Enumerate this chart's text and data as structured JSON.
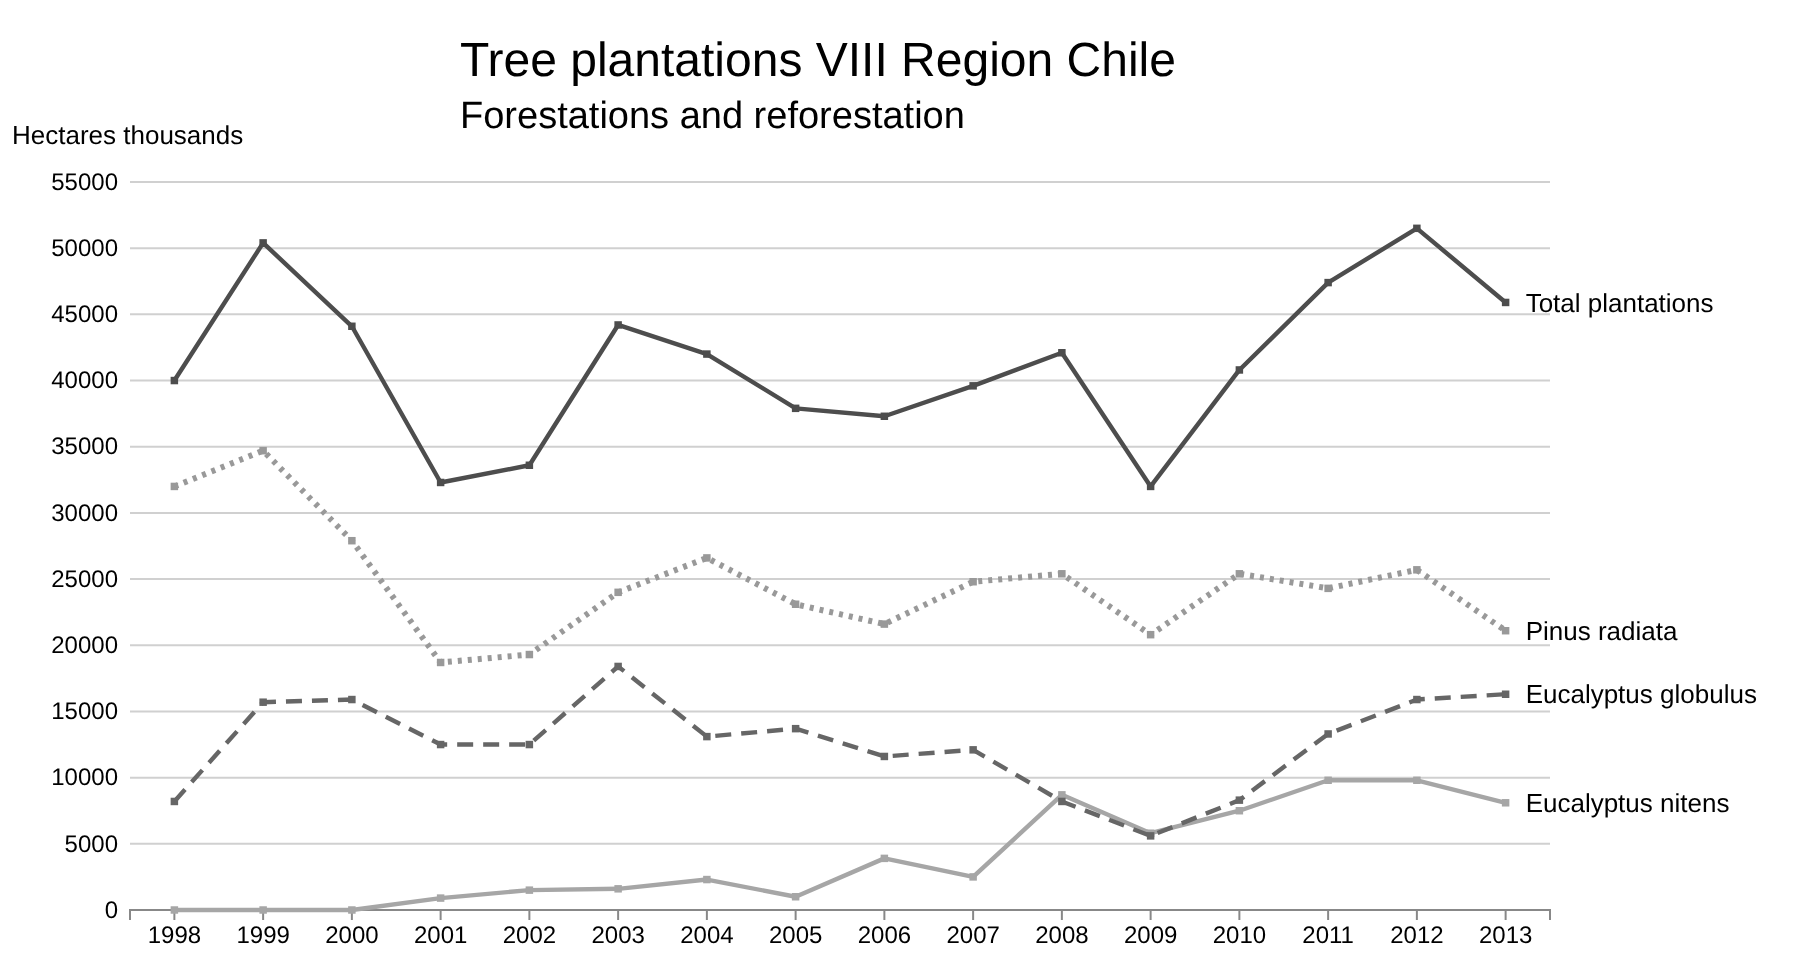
{
  "chart_data": {
    "type": "line",
    "title": "Tree plantations VIII Region Chile",
    "subtitle": "Forestations and reforestation",
    "ylabel": "Hectares thousands",
    "categories": [
      "1998",
      "1999",
      "2000",
      "2001",
      "2002",
      "2003",
      "2004",
      "2005",
      "2006",
      "2007",
      "2008",
      "2009",
      "2010",
      "2011",
      "2012",
      "2013"
    ],
    "series": [
      {
        "name": "Total plantations",
        "color": "#4d4d4d",
        "line_style": "solid",
        "values": [
          40000,
          50400,
          44100,
          32300,
          33600,
          44200,
          42000,
          37900,
          37300,
          39600,
          42100,
          32000,
          40800,
          47400,
          51500,
          45900
        ]
      },
      {
        "name": "Pinus radiata",
        "color": "#999999",
        "line_style": "dotted",
        "values": [
          32000,
          34700,
          27900,
          18700,
          19300,
          24000,
          26600,
          23100,
          21600,
          24800,
          25400,
          20800,
          25400,
          24300,
          25700,
          21100
        ]
      },
      {
        "name": "Eucalyptus globulus",
        "color": "#666666",
        "line_style": "dashed",
        "values": [
          8200,
          15700,
          15900,
          12500,
          12500,
          18400,
          13100,
          13700,
          11600,
          12100,
          8200,
          5600,
          8300,
          13300,
          15900,
          16300
        ]
      },
      {
        "name": "Eucalyptus nitens",
        "color": "#a6a6a6",
        "line_style": "solid",
        "values": [
          0,
          0,
          0,
          900,
          1500,
          1600,
          2300,
          1000,
          3900,
          2500,
          8700,
          5800,
          7500,
          9800,
          9800,
          8100
        ]
      }
    ],
    "ylim": [
      0,
      55000
    ],
    "yticks": [
      0,
      5000,
      10000,
      15000,
      20000,
      25000,
      30000,
      35000,
      40000,
      45000,
      50000,
      55000
    ],
    "grid": "y",
    "marker": "square"
  }
}
